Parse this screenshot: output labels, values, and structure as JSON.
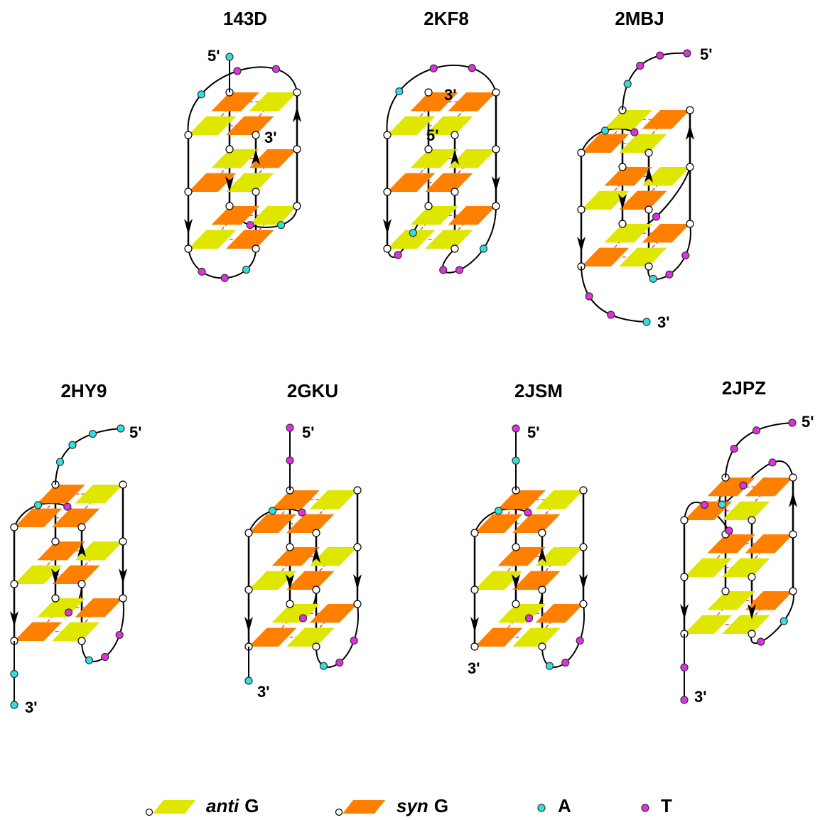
{
  "structures": [
    {
      "name": "143D",
      "ends": [
        "5'",
        "3'"
      ]
    },
    {
      "name": "2KF8",
      "ends": [
        "5'",
        "3'"
      ]
    },
    {
      "name": "2MBJ",
      "ends": [
        "5'",
        "3'"
      ]
    },
    {
      "name": "2HY9",
      "ends": [
        "5'",
        "3'"
      ]
    },
    {
      "name": "2GKU",
      "ends": [
        "5'",
        "3'"
      ]
    },
    {
      "name": "2JSM",
      "ends": [
        "5'",
        "3'"
      ]
    },
    {
      "name": "2JPZ",
      "ends": [
        "5'",
        "3'"
      ]
    }
  ],
  "legend": [
    {
      "italic": "anti",
      "text": "G"
    },
    {
      "italic": "syn",
      "text": "G"
    },
    {
      "text": "A"
    },
    {
      "text": "T"
    }
  ]
}
